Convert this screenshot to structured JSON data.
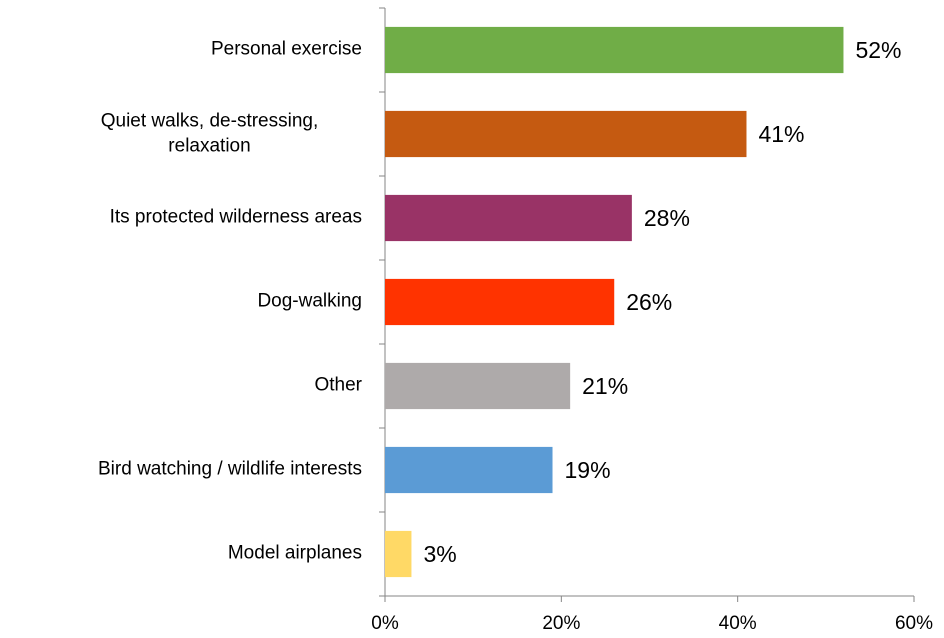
{
  "chart_data": {
    "type": "bar",
    "orientation": "horizontal",
    "categories": [
      "Personal exercise",
      "Quiet walks, de-stressing, relaxation",
      "Its protected wilderness areas",
      "Dog-walking",
      "Other",
      "Bird watching / wildlife interests",
      "Model airplanes"
    ],
    "values": [
      52,
      41,
      28,
      26,
      21,
      19,
      3
    ],
    "value_labels": [
      "52%",
      "41%",
      "28%",
      "26%",
      "21%",
      "19%",
      "3%"
    ],
    "colors": [
      "#70ad47",
      "#c55a11",
      "#993366",
      "#ff3300",
      "#aeaaaa",
      "#5b9bd5",
      "#ffd966"
    ],
    "xlim": [
      0,
      60
    ],
    "xticks": [
      {
        "value": 0,
        "label": "0%"
      },
      {
        "value": 20,
        "label": "20%"
      },
      {
        "value": 40,
        "label": "40%"
      },
      {
        "value": 60,
        "label": "60%"
      }
    ],
    "grid": false
  }
}
